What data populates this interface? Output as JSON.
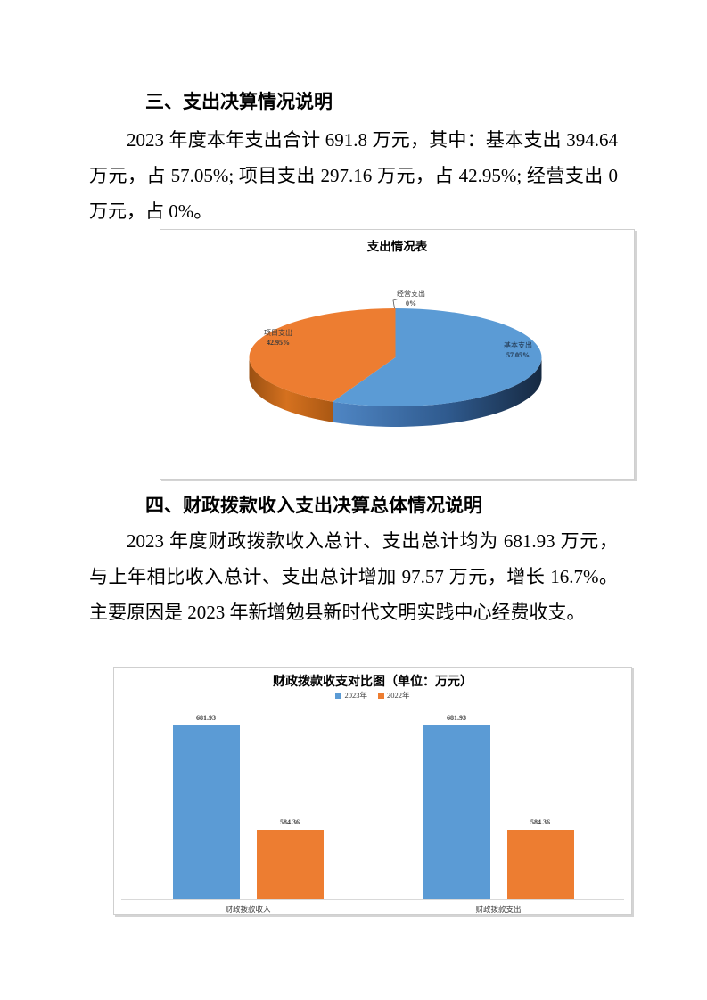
{
  "section3": {
    "heading": "三、支出决算情况说明",
    "paragraph": "2023 年度本年支出合计 691.8 万元，其中：基本支出 394.64 万元，占 57.05%; 项目支出 297.16 万元，占 42.95%; 经营支出 0 万元，占 0%。"
  },
  "section4": {
    "heading": "四、财政拨款收入支出决算总体情况说明",
    "paragraph": "2023 年度财政拨款收入总计、支出总计均为 681.93 万元，与上年相比收入总计、支出总计增加 97.57 万元，增长 16.7%。主要原因是 2023 年新增勉县新时代文明实践中心经费收支。"
  },
  "chart_data": [
    {
      "type": "pie",
      "style": "3d",
      "title": "支出情况表",
      "labels": [
        "基本支出",
        "项目支出",
        "经营支出"
      ],
      "values": [
        57.05,
        42.95,
        0
      ],
      "value_labels": [
        "57.05%",
        "42.95%",
        "0%"
      ],
      "colors": [
        "#5B9BD5",
        "#ED7D31",
        "#A5A5A5"
      ],
      "label_text_colors": [
        "#1e3147",
        "#3a3a3a",
        "#404040"
      ],
      "start_angle_deg": 0,
      "direction": "clockwise",
      "legend": "none"
    },
    {
      "type": "bar",
      "title": "财政拨款收支对比图（单位：万元）",
      "categories": [
        "财政拨款收入",
        "财政拨款支出"
      ],
      "series": [
        {
          "name": "2023年",
          "color": "#5B9BD5",
          "values": [
            681.93,
            681.93
          ]
        },
        {
          "name": "2022年",
          "color": "#ED7D31",
          "values": [
            584.36,
            584.36
          ]
        }
      ],
      "value_labels": [
        [
          "681.93",
          "681.93"
        ],
        [
          "584.36",
          "584.36"
        ]
      ],
      "ylim": [
        520,
        700
      ],
      "grid": false,
      "legend_position": "top"
    }
  ]
}
